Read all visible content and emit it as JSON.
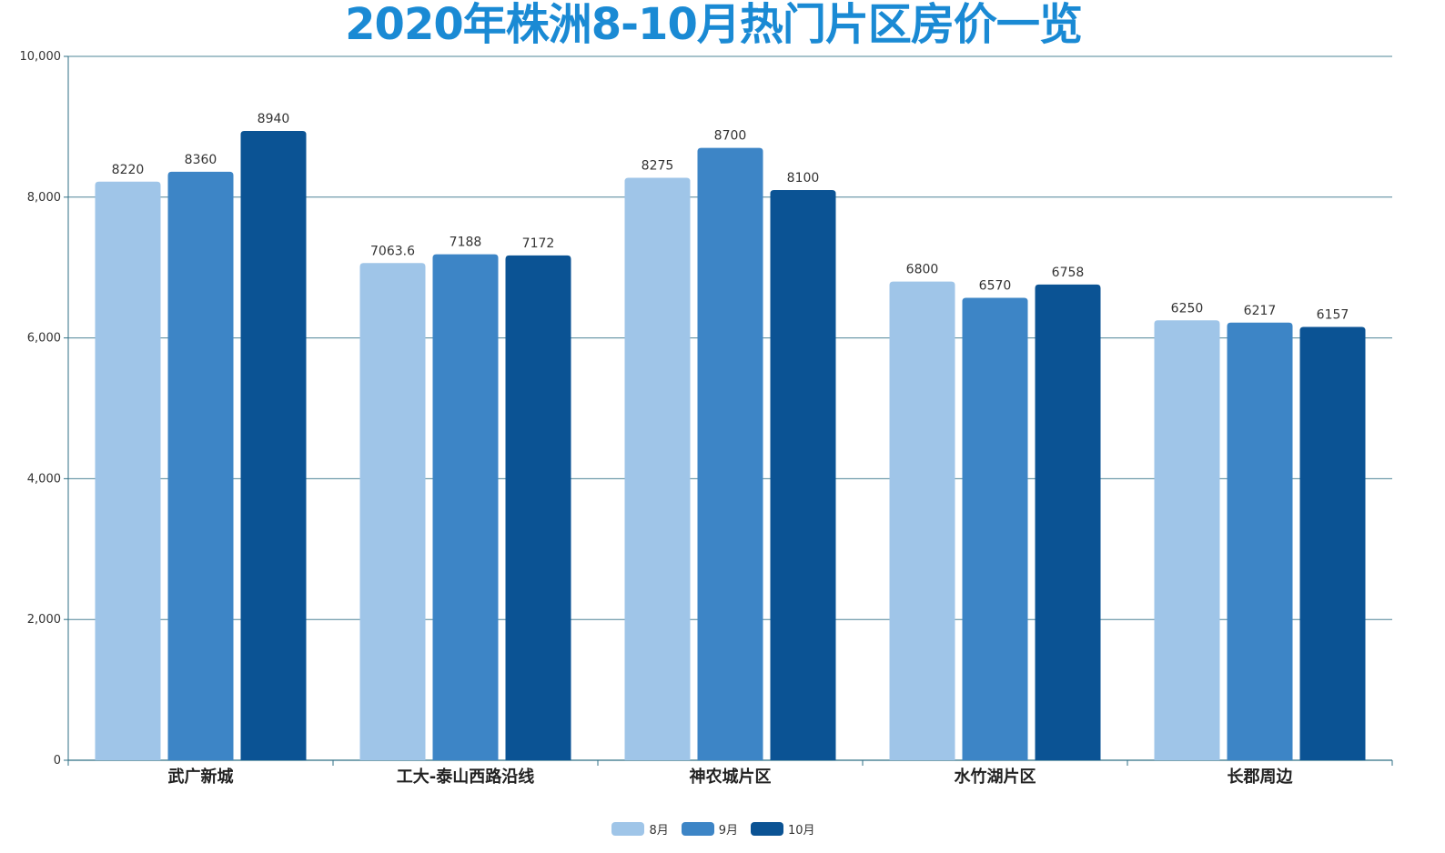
{
  "chart_data": {
    "type": "bar",
    "title": "2020年株洲8-10月热门片区房价一览",
    "categories": [
      "武广新城",
      "工大-泰山西路沿线",
      "神农城片区",
      "水竹湖片区",
      "长郡周边"
    ],
    "series": [
      {
        "name": "8月",
        "color": "#9fc5e8",
        "values": [
          8220,
          7063.6,
          8275,
          6800,
          6250
        ]
      },
      {
        "name": "9月",
        "color": "#3d85c6",
        "values": [
          8360,
          7188,
          8700,
          6570,
          6217
        ]
      },
      {
        "name": "10月",
        "color": "#0b5394",
        "values": [
          8940,
          7172,
          8100,
          6758,
          6157
        ]
      }
    ],
    "ylim": [
      0,
      10000
    ],
    "yticks": [
      0,
      2000,
      4000,
      6000,
      8000,
      10000
    ],
    "ytick_labels": [
      "0",
      "2,000",
      "4,000",
      "6,000",
      "8,000",
      "10,000"
    ],
    "grid": true,
    "legend_position": "bottom-center",
    "axis_color": "#2f6f85"
  }
}
